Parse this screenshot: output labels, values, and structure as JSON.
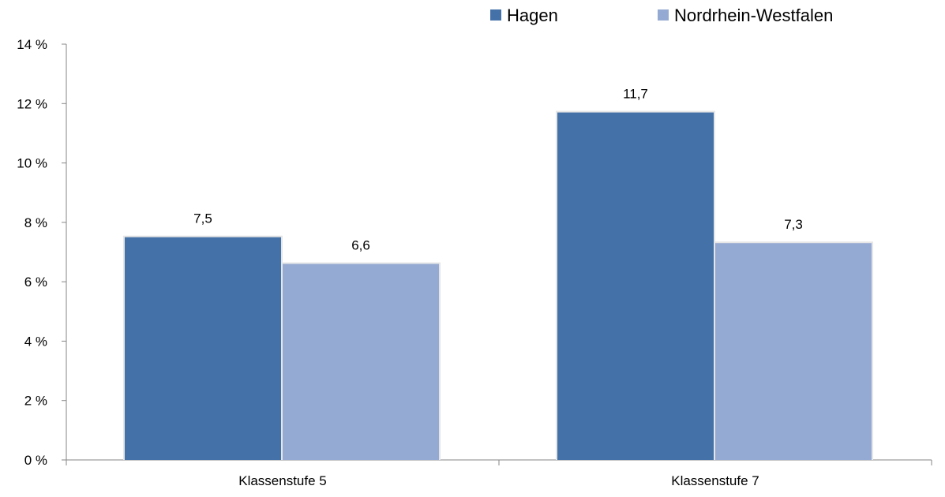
{
  "chart_data": {
    "type": "bar",
    "title": "",
    "xlabel": "",
    "ylabel": "",
    "categories": [
      "Klassenstufe 5",
      "Klassenstufe 7"
    ],
    "series": [
      {
        "name": "Hagen",
        "values": [
          7.5,
          11.7
        ],
        "labels": [
          "7,5",
          "11,7"
        ],
        "color": "#4472a8"
      },
      {
        "name": "Nordrhein-Westfalen",
        "values": [
          6.6,
          7.3
        ],
        "labels": [
          "6,6",
          "7,3"
        ],
        "color": "#95aad3"
      }
    ],
    "ylim": [
      0,
      14
    ],
    "yticks": [
      0,
      2,
      4,
      6,
      8,
      10,
      12,
      14
    ],
    "ytick_labels": [
      "0 %",
      "2 %",
      "4 %",
      "6 %",
      "8 %",
      "10 %",
      "12 %",
      "14 %"
    ],
    "legend_position": "top-right",
    "grid": false,
    "axis_color": "#868686"
  }
}
